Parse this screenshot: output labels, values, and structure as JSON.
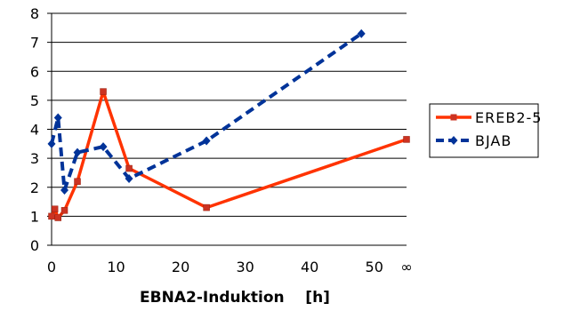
{
  "chart_data": {
    "type": "line",
    "xlabel": "EBNA2-Induktion    [h]",
    "ylabel": "",
    "title": "",
    "xlim": [
      0,
      55
    ],
    "ylim": [
      0,
      8
    ],
    "x_ticks": [
      "0",
      "10",
      "20",
      "30",
      "40",
      "50"
    ],
    "x_extra_tick": "∞",
    "y_ticks": [
      "0",
      "1",
      "2",
      "3",
      "4",
      "5",
      "6",
      "7",
      "8"
    ],
    "grid": "horizontal",
    "legend_position": "right",
    "series": [
      {
        "name": "EREB2-5",
        "color": "#ff3300",
        "style": "solid",
        "marker": "square",
        "points": [
          [
            0,
            1.0
          ],
          [
            0.5,
            1.25
          ],
          [
            1,
            0.95
          ],
          [
            2,
            1.2
          ],
          [
            4,
            2.2
          ],
          [
            8,
            5.3
          ],
          [
            12,
            2.65
          ],
          [
            24,
            1.3
          ],
          [
            "∞",
            3.65
          ]
        ]
      },
      {
        "name": "BJAB",
        "color": "#003399",
        "style": "dashed",
        "marker": "diamond",
        "points": [
          [
            0,
            3.5
          ],
          [
            1,
            4.4
          ],
          [
            2,
            1.9
          ],
          [
            4,
            3.2
          ],
          [
            8,
            3.4
          ],
          [
            12,
            2.3
          ],
          [
            24,
            3.6
          ],
          [
            48,
            7.3
          ]
        ]
      }
    ]
  }
}
